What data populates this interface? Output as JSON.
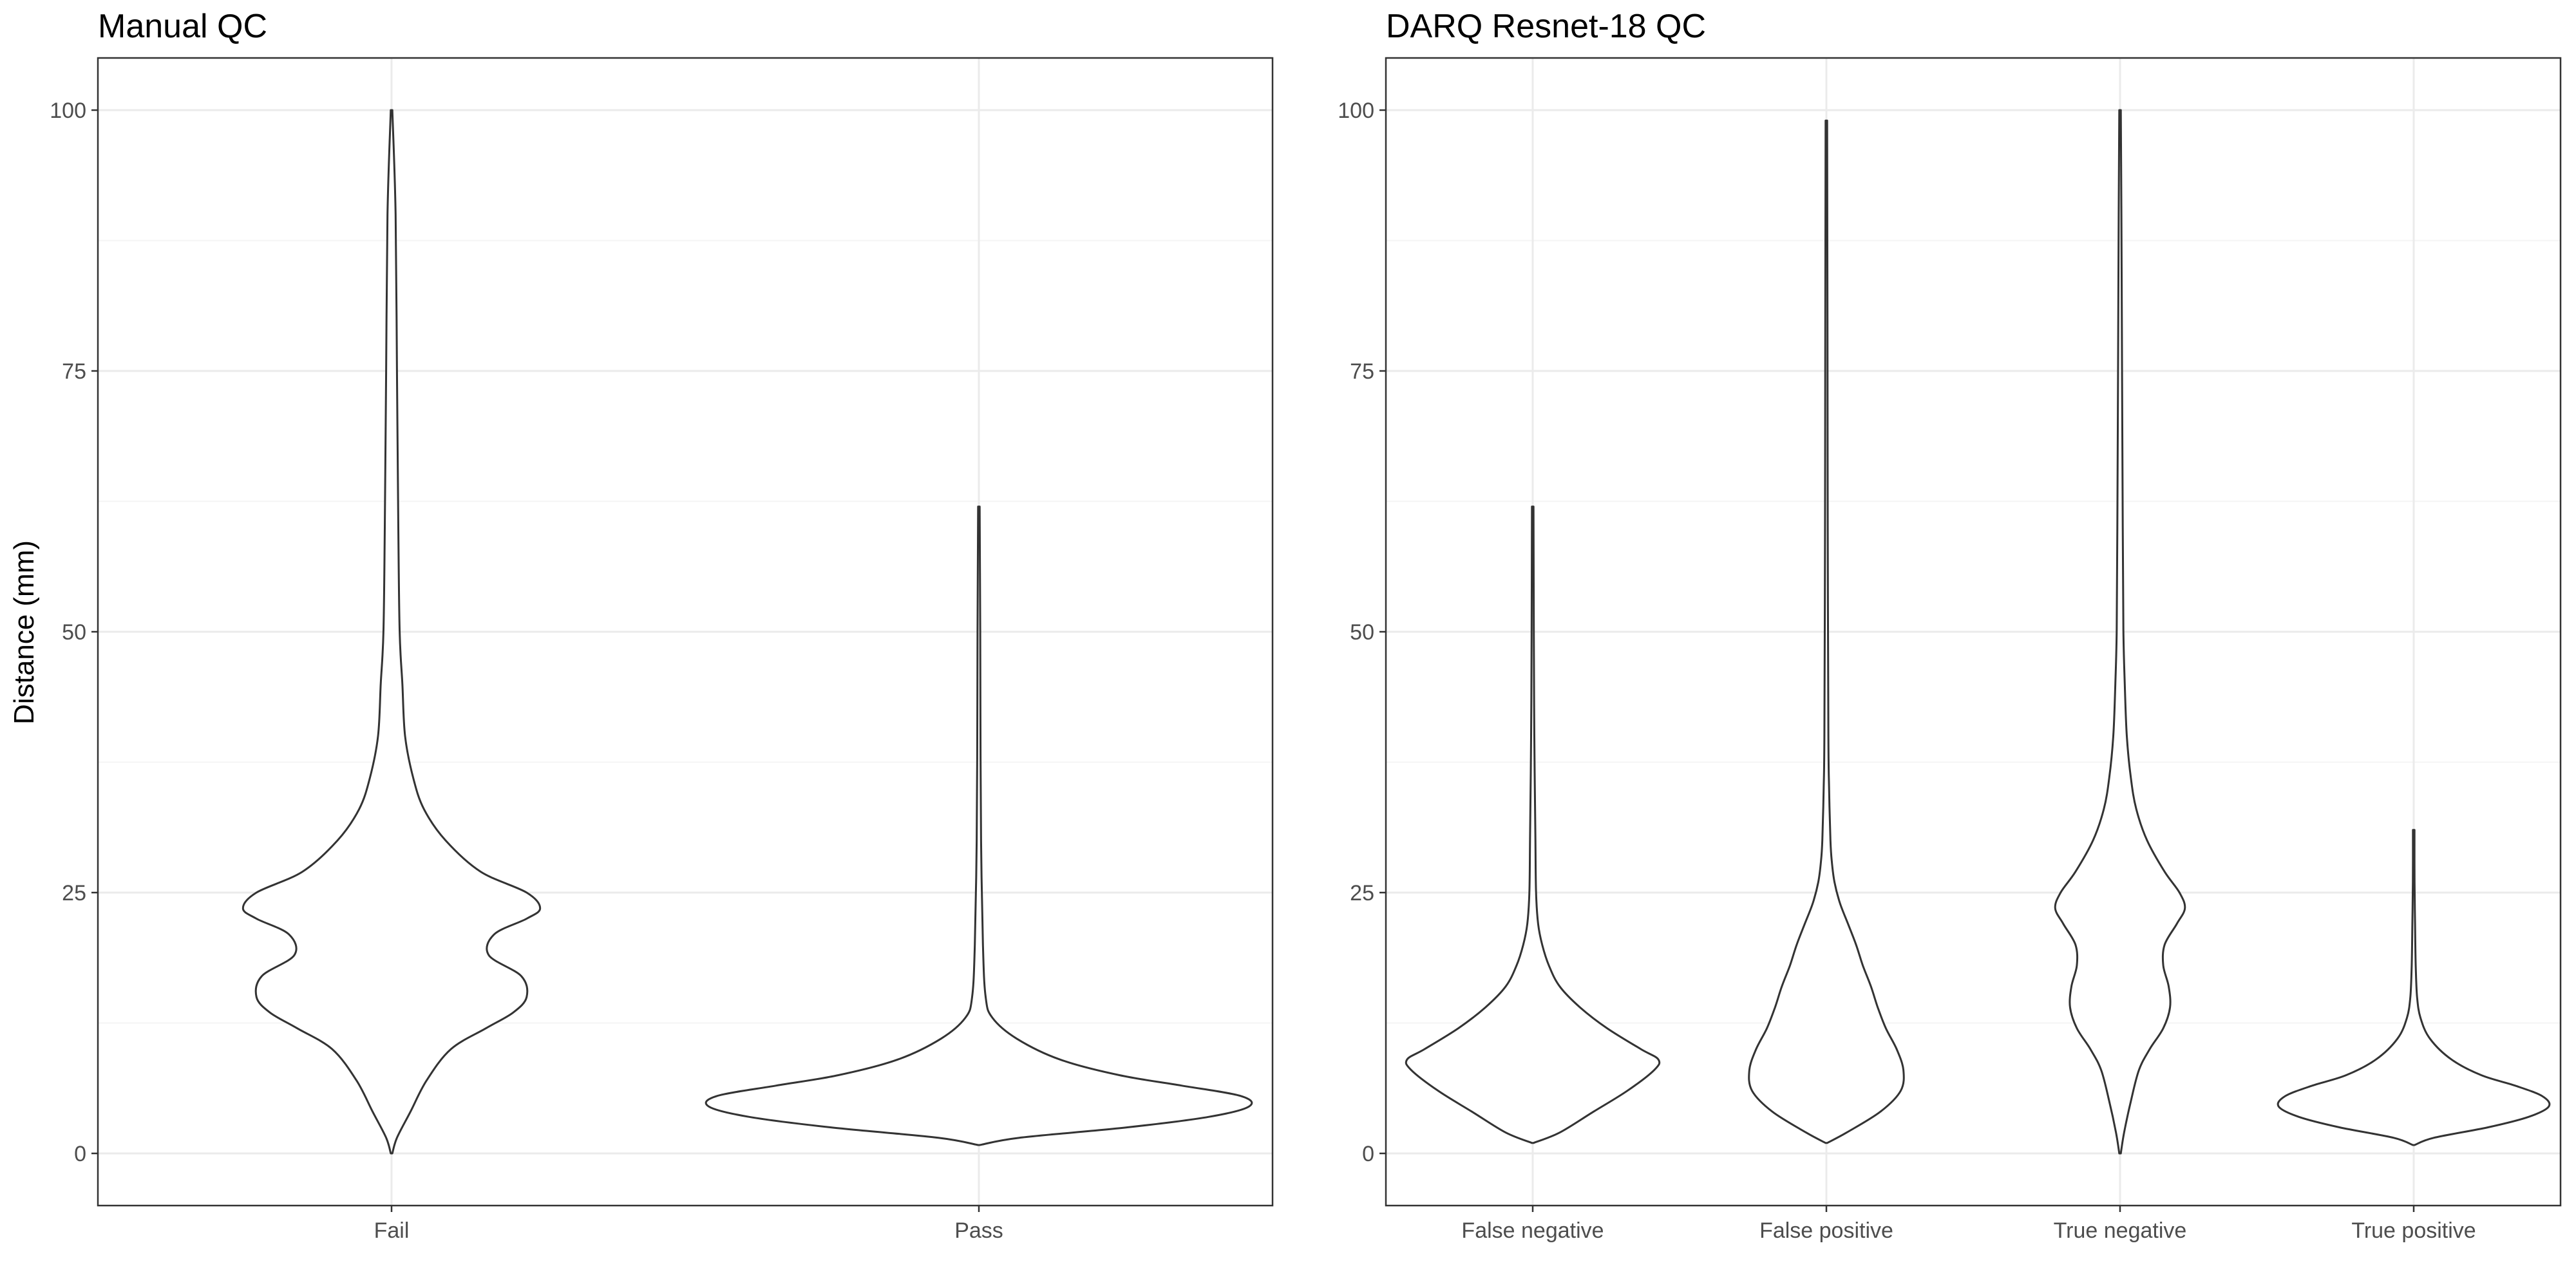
{
  "chart_data": [
    {
      "type": "violin",
      "title": "Manual QC",
      "ylabel": "Distance (mm)",
      "xlabel": "",
      "ylim": [
        -5,
        105
      ],
      "yticks": [
        0,
        25,
        50,
        75,
        100
      ],
      "grid": true,
      "categories": [
        "Fail",
        "Pass"
      ],
      "violins": [
        {
          "category": "Fail",
          "min": 0,
          "max": 100,
          "profile": [
            [
              0,
              0.0
            ],
            [
              1.5,
              0.02
            ],
            [
              4,
              0.07
            ],
            [
              7,
              0.13
            ],
            [
              10,
              0.22
            ],
            [
              12,
              0.35
            ],
            [
              13.5,
              0.45
            ],
            [
              15,
              0.5
            ],
            [
              17,
              0.48
            ],
            [
              19,
              0.36
            ],
            [
              21,
              0.38
            ],
            [
              22.5,
              0.5
            ],
            [
              23.5,
              0.55
            ],
            [
              25,
              0.5
            ],
            [
              27,
              0.33
            ],
            [
              30,
              0.2
            ],
            [
              33,
              0.12
            ],
            [
              36,
              0.08
            ],
            [
              40,
              0.05
            ],
            [
              45,
              0.04
            ],
            [
              50,
              0.03
            ],
            [
              60,
              0.025
            ],
            [
              75,
              0.02
            ],
            [
              90,
              0.015
            ],
            [
              100,
              0.0
            ]
          ]
        },
        {
          "category": "Pass",
          "min": 0.8,
          "max": 62,
          "profile": [
            [
              0.8,
              0.0
            ],
            [
              1.5,
              0.15
            ],
            [
              2.5,
              0.55
            ],
            [
              3.5,
              0.85
            ],
            [
              4.5,
              1.0
            ],
            [
              5.5,
              0.97
            ],
            [
              6.5,
              0.75
            ],
            [
              7.5,
              0.52
            ],
            [
              9,
              0.3
            ],
            [
              11,
              0.14
            ],
            [
              13,
              0.05
            ],
            [
              15,
              0.025
            ],
            [
              20,
              0.015
            ],
            [
              30,
              0.008
            ],
            [
              40,
              0.006
            ],
            [
              50,
              0.005
            ],
            [
              62,
              0.0
            ]
          ]
        }
      ]
    },
    {
      "type": "violin",
      "title": "DARQ Resnet-18 QC",
      "ylabel": "",
      "xlabel": "",
      "ylim": [
        -5,
        105
      ],
      "yticks": [
        0,
        25,
        50,
        75,
        100
      ],
      "grid": true,
      "categories": [
        "False negative",
        "False positive",
        "True negative",
        "True positive"
      ],
      "violins": [
        {
          "category": "False negative",
          "min": 1,
          "max": 62,
          "profile": [
            [
              1,
              0.0
            ],
            [
              2,
              0.2
            ],
            [
              4,
              0.45
            ],
            [
              6,
              0.7
            ],
            [
              8,
              0.9
            ],
            [
              9,
              0.93
            ],
            [
              10,
              0.8
            ],
            [
              12,
              0.55
            ],
            [
              14,
              0.35
            ],
            [
              16,
              0.2
            ],
            [
              18,
              0.12
            ],
            [
              20,
              0.07
            ],
            [
              22,
              0.04
            ],
            [
              25,
              0.025
            ],
            [
              30,
              0.02
            ],
            [
              40,
              0.012
            ],
            [
              50,
              0.008
            ],
            [
              62,
              0.0
            ]
          ]
        },
        {
          "category": "False positive",
          "min": 1,
          "max": 99,
          "profile": [
            [
              1,
              0.0
            ],
            [
              2,
              0.15
            ],
            [
              4,
              0.4
            ],
            [
              6,
              0.55
            ],
            [
              8,
              0.57
            ],
            [
              10,
              0.52
            ],
            [
              12,
              0.44
            ],
            [
              14,
              0.38
            ],
            [
              16,
              0.33
            ],
            [
              18,
              0.27
            ],
            [
              20,
              0.22
            ],
            [
              22,
              0.16
            ],
            [
              24,
              0.1
            ],
            [
              26,
              0.06
            ],
            [
              28,
              0.04
            ],
            [
              30,
              0.03
            ],
            [
              35,
              0.02
            ],
            [
              40,
              0.015
            ],
            [
              60,
              0.01
            ],
            [
              80,
              0.008
            ],
            [
              99,
              0.0
            ]
          ]
        },
        {
          "category": "True negative",
          "min": 0,
          "max": 100,
          "profile": [
            [
              0,
              0.0
            ],
            [
              2,
              0.03
            ],
            [
              5,
              0.08
            ],
            [
              8,
              0.14
            ],
            [
              10,
              0.22
            ],
            [
              12,
              0.32
            ],
            [
              14,
              0.37
            ],
            [
              16,
              0.36
            ],
            [
              18,
              0.32
            ],
            [
              20,
              0.33
            ],
            [
              22,
              0.42
            ],
            [
              23.5,
              0.48
            ],
            [
              25,
              0.44
            ],
            [
              27,
              0.33
            ],
            [
              30,
              0.2
            ],
            [
              33,
              0.12
            ],
            [
              36,
              0.08
            ],
            [
              40,
              0.05
            ],
            [
              45,
              0.035
            ],
            [
              50,
              0.025
            ],
            [
              60,
              0.02
            ],
            [
              75,
              0.015
            ],
            [
              90,
              0.01
            ],
            [
              100,
              0.0
            ]
          ]
        },
        {
          "category": "True positive",
          "min": 0.8,
          "max": 31,
          "profile": [
            [
              0.8,
              0.0
            ],
            [
              1.5,
              0.15
            ],
            [
              2.5,
              0.55
            ],
            [
              3.5,
              0.85
            ],
            [
              4.5,
              1.0
            ],
            [
              5.5,
              0.95
            ],
            [
              6.5,
              0.75
            ],
            [
              7.5,
              0.5
            ],
            [
              9,
              0.28
            ],
            [
              11,
              0.12
            ],
            [
              13,
              0.05
            ],
            [
              15,
              0.025
            ],
            [
              18,
              0.015
            ],
            [
              22,
              0.01
            ],
            [
              26,
              0.006
            ],
            [
              31,
              0.0
            ]
          ]
        }
      ]
    }
  ]
}
